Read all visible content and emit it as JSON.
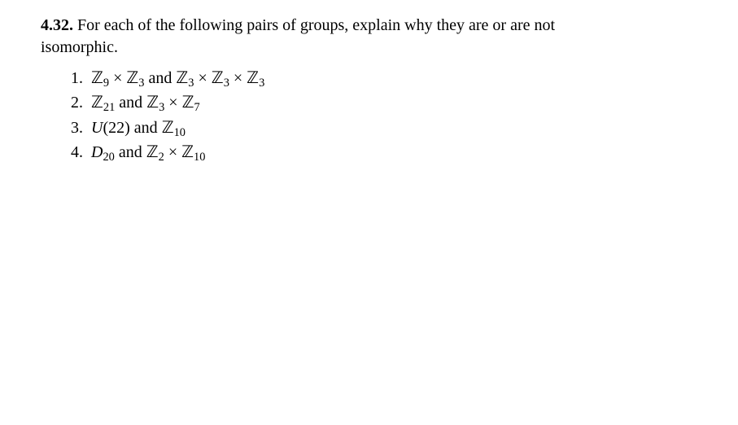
{
  "problem": {
    "number": "4.32.",
    "prompt_part1": "For each of the following pairs of groups, explain why they are or are not",
    "prompt_part2": "isomorphic."
  },
  "math": {
    "Z": "ℤ",
    "times": "×",
    "D": "D",
    "U": "U"
  },
  "items": [
    {
      "num": "1.",
      "expr": "ℤ9 × ℤ3 and ℤ3 × ℤ3 × ℤ3"
    },
    {
      "num": "2.",
      "expr": "ℤ21 and ℤ3 × ℤ7"
    },
    {
      "num": "3.",
      "expr": "U(22) and ℤ10"
    },
    {
      "num": "4.",
      "expr": "D20 and ℤ2 × ℤ10"
    }
  ],
  "subs": {
    "s9": "9",
    "s3": "3",
    "s21": "21",
    "s7": "7",
    "s10": "10",
    "s20": "20",
    "s2": "2"
  },
  "words": {
    "and": " and ",
    "lp": "(",
    "rp": ")",
    "n22": "22"
  }
}
